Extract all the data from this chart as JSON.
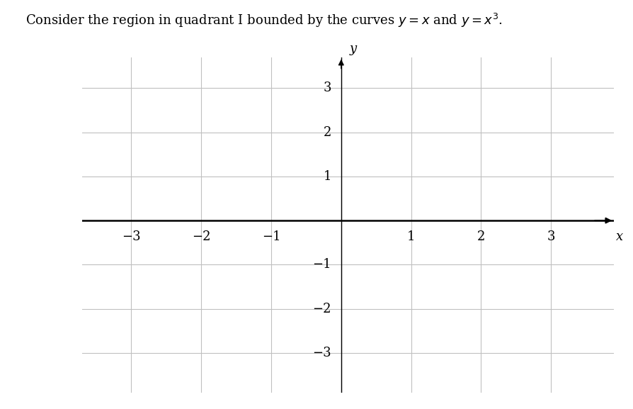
{
  "title": "Consider the region in quadrant I bounded by the curves $y = x$ and $y = x^3$.",
  "xlim": [
    -3.7,
    3.9
  ],
  "ylim": [
    -3.9,
    3.7
  ],
  "xticks": [
    -3,
    -2,
    -1,
    1,
    2,
    3
  ],
  "yticks": [
    -3,
    -2,
    -1,
    1,
    2,
    3
  ],
  "grid_color": "#c0c0c0",
  "axis_color": "#000000",
  "background_color": "#ffffff",
  "tick_label_color": "#000000",
  "xlabel": "x",
  "ylabel": "y",
  "title_fontsize": 13,
  "tick_fontsize": 13,
  "axis_label_fontsize": 13,
  "figwidth": 8.94,
  "figheight": 5.77,
  "dpi": 100
}
